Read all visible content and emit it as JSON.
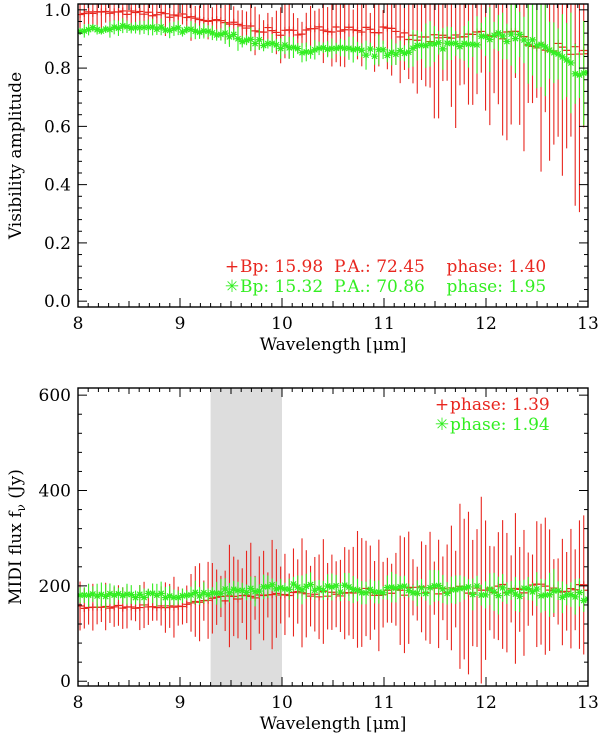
{
  "chart_data": [
    {
      "type": "scatter",
      "title": "",
      "xlabel": "Wavelength [μm]",
      "ylabel": "Visibility amplitude",
      "xlim": [
        8,
        13
      ],
      "ylim": [
        -0.02,
        1.02
      ],
      "xticks": [
        "8",
        "9",
        "10",
        "11",
        "12",
        "13"
      ],
      "yticks": [
        "0.0",
        "0.2",
        "0.4",
        "0.6",
        "0.8",
        "1.0"
      ],
      "legend": [
        {
          "marker": "+",
          "color": "#e8261f",
          "label": "Bp: 15.98  P.A.: 72.45    phase: 1.40"
        },
        {
          "marker": "✳",
          "color": "#33ee22",
          "label": "Bp: 15.32  P.A.: 70.86    phase: 1.95"
        }
      ],
      "series": [
        {
          "name": "phase 1.40",
          "color": "#e8261f",
          "marker": "plus",
          "x": [
            8.05,
            8.5,
            9.0,
            9.5,
            10.0,
            10.3,
            10.6,
            11.0,
            11.3,
            11.6,
            12.0,
            12.3,
            12.6,
            12.95
          ],
          "y": [
            0.99,
            0.99,
            0.98,
            0.95,
            0.92,
            0.93,
            0.94,
            0.93,
            0.9,
            0.9,
            0.92,
            0.91,
            0.87,
            0.86
          ],
          "err": [
            0.05,
            0.05,
            0.06,
            0.06,
            0.07,
            0.08,
            0.09,
            0.1,
            0.16,
            0.22,
            0.25,
            0.28,
            0.32,
            0.4
          ]
        },
        {
          "name": "phase 1.95",
          "color": "#33ee22",
          "marker": "asterisk",
          "x": [
            8.05,
            8.5,
            9.0,
            9.5,
            10.0,
            10.3,
            10.6,
            11.0,
            11.3,
            11.6,
            12.0,
            12.3,
            12.6,
            12.95
          ],
          "y": [
            0.93,
            0.94,
            0.93,
            0.91,
            0.87,
            0.86,
            0.86,
            0.85,
            0.87,
            0.88,
            0.9,
            0.91,
            0.86,
            0.78
          ],
          "err": [
            0.02,
            0.02,
            0.02,
            0.03,
            0.03,
            0.03,
            0.03,
            0.04,
            0.05,
            0.06,
            0.08,
            0.09,
            0.12,
            0.14
          ]
        }
      ]
    },
    {
      "type": "scatter",
      "title": "",
      "xlabel": "Wavelength [μm]",
      "ylabel": "MIDI flux f",
      "ylabel_sub": "ν",
      "ylabel_unit": " (Jy)",
      "xlim": [
        8,
        13
      ],
      "ylim": [
        -10,
        615
      ],
      "xticks": [
        "8",
        "9",
        "10",
        "11",
        "12",
        "13"
      ],
      "yticks": [
        "0",
        "200",
        "400",
        "600"
      ],
      "shaded_band": [
        9.3,
        10.0
      ],
      "legend": [
        {
          "marker": "+",
          "color": "#e8261f",
          "label": "phase: 1.39"
        },
        {
          "marker": "✳",
          "color": "#33ee22",
          "label": "phase: 1.94"
        }
      ],
      "series": [
        {
          "name": "phase 1.39",
          "color": "#e8261f",
          "marker": "plus",
          "x": [
            8.05,
            8.5,
            9.0,
            9.5,
            10.0,
            10.5,
            11.0,
            11.5,
            12.0,
            12.5,
            12.95
          ],
          "y": [
            155,
            155,
            160,
            175,
            180,
            185,
            188,
            190,
            192,
            195,
            198
          ],
          "err": [
            40,
            40,
            50,
            80,
            80,
            85,
            90,
            100,
            140,
            110,
            110
          ]
        },
        {
          "name": "phase 1.94",
          "color": "#33ee22",
          "marker": "asterisk",
          "x": [
            8.05,
            8.5,
            9.0,
            9.5,
            10.0,
            10.5,
            11.0,
            11.5,
            12.0,
            12.5,
            12.95
          ],
          "y": [
            180,
            180,
            180,
            190,
            198,
            195,
            192,
            193,
            190,
            185,
            178
          ],
          "err": [
            18,
            18,
            18,
            22,
            22,
            22,
            24,
            26,
            30,
            32,
            34
          ]
        }
      ]
    }
  ]
}
